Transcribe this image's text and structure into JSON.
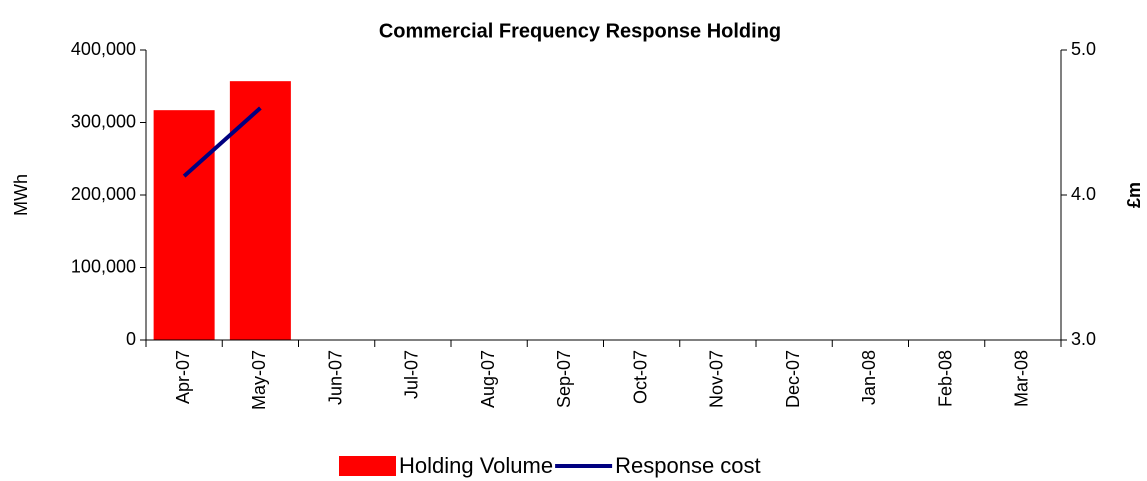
{
  "chart_data": {
    "type": "bar",
    "title": "Commercial Frequency Response Holding",
    "categories": [
      "Apr-07",
      "May-07",
      "Jun-07",
      "Jul-07",
      "Aug-07",
      "Sep-07",
      "Oct-07",
      "Nov-07",
      "Dec-07",
      "Jan-08",
      "Feb-08",
      "Mar-08"
    ],
    "series": [
      {
        "name": "Holding Volume",
        "type": "bar",
        "color": "#ff0000",
        "values": [
          317000,
          357000,
          null,
          null,
          null,
          null,
          null,
          null,
          null,
          null,
          null,
          null
        ]
      },
      {
        "name": "Response cost",
        "type": "line",
        "axis": "y2",
        "color": "#000080",
        "values": [
          4.13,
          4.6,
          null,
          null,
          null,
          null,
          null,
          null,
          null,
          null,
          null,
          null
        ]
      }
    ],
    "ylabel": "MWh",
    "y2label": "£m",
    "ylim": [
      0,
      400000
    ],
    "yticks": [
      0,
      {
        "value": 100000,
        "label": "100,000"
      },
      {
        "value": 200000,
        "label": "200,000"
      },
      {
        "value": 300000,
        "label": "300,000"
      },
      {
        "value": 400000,
        "label": "400,000"
      }
    ],
    "y2lim": [
      3,
      5
    ],
    "y2ticks": [
      {
        "value": 3,
        "label": "3.0"
      },
      {
        "value": 4,
        "label": "4.0"
      },
      {
        "value": 5,
        "label": "5.0"
      }
    ],
    "legend": "bottom"
  }
}
